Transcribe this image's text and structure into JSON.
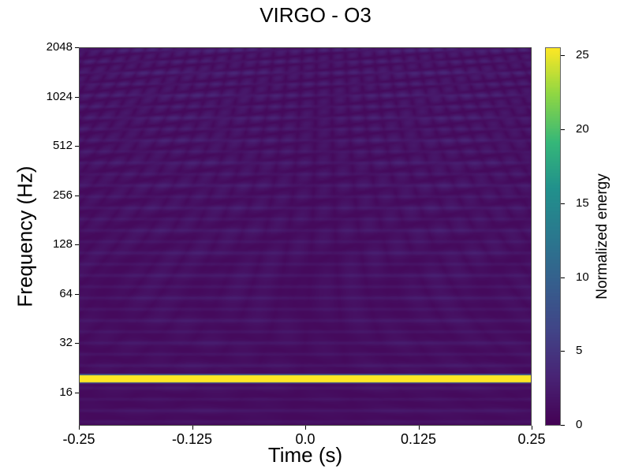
{
  "chart_data": {
    "type": "heatmap",
    "title": "VIRGO - O3",
    "xlabel": "Time (s)",
    "ylabel": "Frequency (Hz)",
    "xlim": [
      -0.25,
      0.25
    ],
    "ylim": [
      10,
      2048
    ],
    "yscale": "log2",
    "x_ticks": [
      "-0.25",
      "-0.125",
      "0.0",
      "0.125",
      "0.25"
    ],
    "y_ticks": [
      "16",
      "32",
      "64",
      "128",
      "256",
      "512",
      "1024",
      "2048"
    ],
    "colorbar": {
      "label": "Normalized energy",
      "colormap": "viridis",
      "range": [
        0,
        25.5
      ],
      "ticks": [
        "0",
        "5",
        "10",
        "15",
        "20",
        "25"
      ]
    },
    "features": [
      {
        "kind": "horizontal_line",
        "frequency_hz": 19.5,
        "energy": 25.5,
        "note": "strong narrow-band line spanning full time range"
      }
    ]
  }
}
